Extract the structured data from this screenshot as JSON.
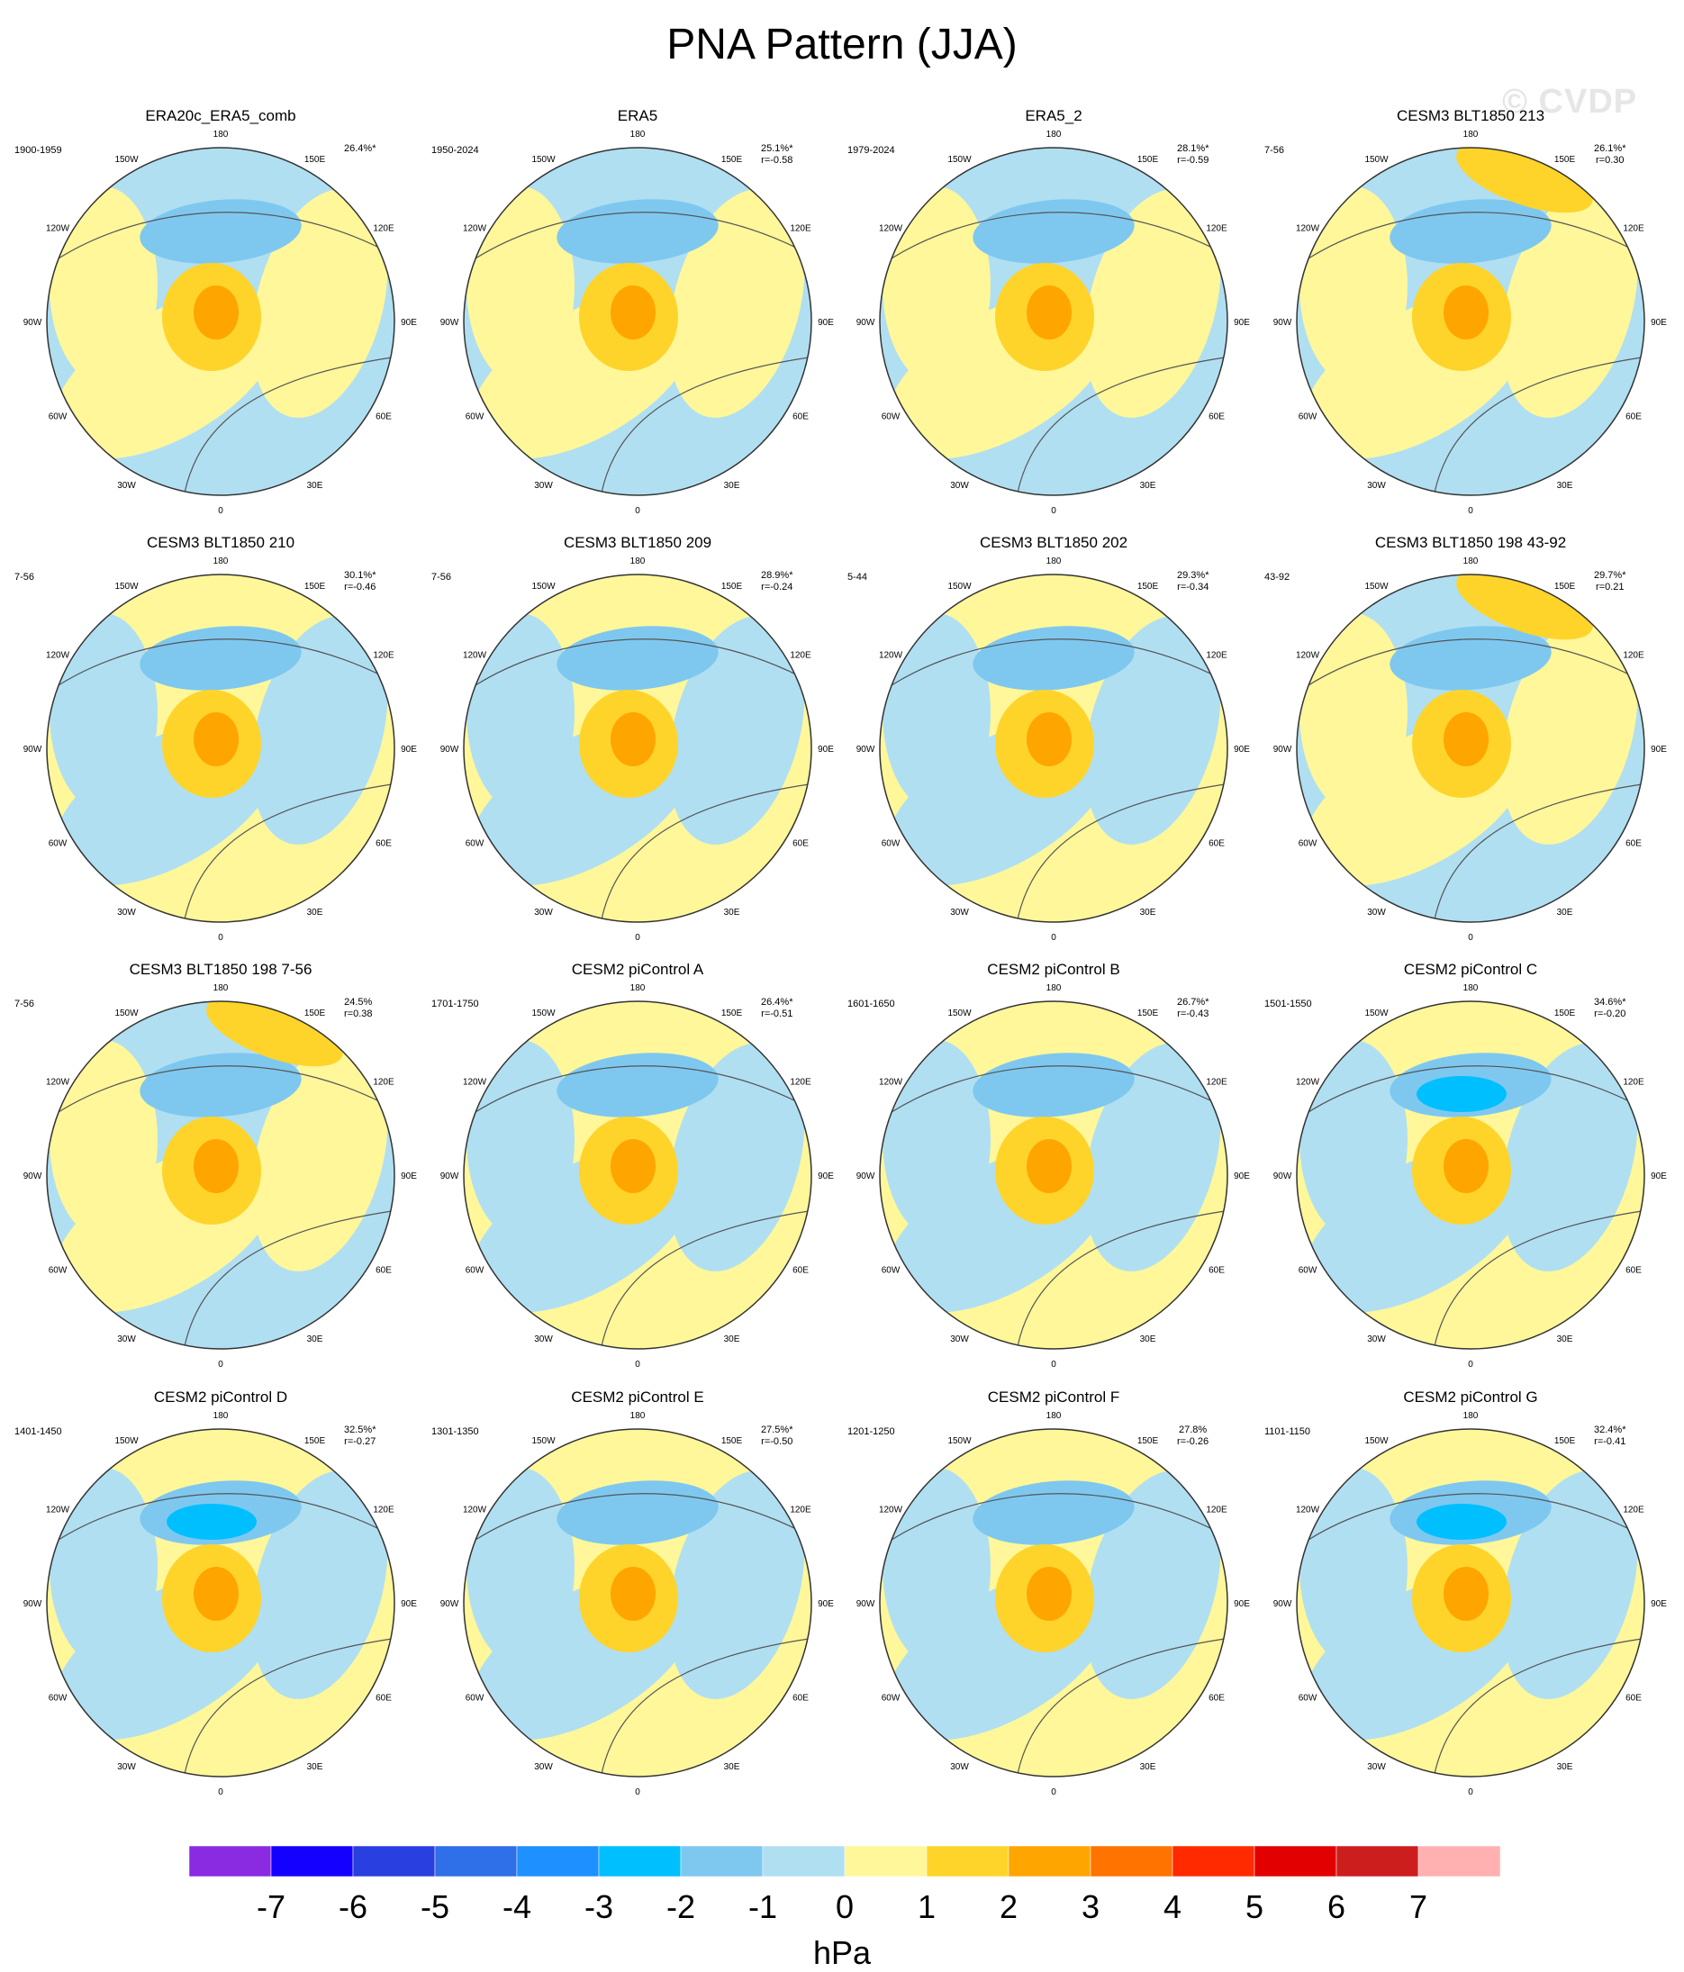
{
  "title": "PNA Pattern (JJA)",
  "watermark": "© CVDP",
  "chart_data": {
    "type": "heatmap",
    "projection": "north polar stereographic",
    "units": "hPa",
    "colorbar": {
      "labels": [
        "-7",
        "-6",
        "-5",
        "-4",
        "-3",
        "-2",
        "-1",
        "0",
        "1",
        "2",
        "3",
        "4",
        "5",
        "6",
        "7"
      ],
      "colors": [
        "#8a2be2",
        "#1400ff",
        "#2a3fe0",
        "#2f6fe8",
        "#1e90ff",
        "#00bfff",
        "#7ec8f0",
        "#b0dff2",
        "#fff79a",
        "#ffd42a",
        "#ffa500",
        "#ff7300",
        "#ff2a00",
        "#e30000",
        "#cd1e1e",
        "#ffb1b1"
      ]
    },
    "longitude_labels": [
      "180",
      "150E",
      "120E",
      "90E",
      "60E",
      "30E",
      "0",
      "30W",
      "60W",
      "90W",
      "120W",
      "150W"
    ],
    "panels": [
      {
        "title": "ERA20c_ERA5_comb",
        "years": "1900-1959",
        "pct": "26.4%*",
        "r": ""
      },
      {
        "title": "ERA5",
        "years": "1950-2024",
        "pct": "25.1%*",
        "r": "r=-0.58"
      },
      {
        "title": "ERA5_2",
        "years": "1979-2024",
        "pct": "28.1%*",
        "r": "r=-0.59"
      },
      {
        "title": "CESM3 BLT1850 213",
        "years": "7-56",
        "pct": "26.1%*",
        "r": "r=0.30"
      },
      {
        "title": "CESM3 BLT1850 210",
        "years": "7-56",
        "pct": "30.1%*",
        "r": "r=-0.46"
      },
      {
        "title": "CESM3 BLT1850 209",
        "years": "7-56",
        "pct": "28.9%*",
        "r": "r=-0.24"
      },
      {
        "title": "CESM3 BLT1850 202",
        "years": "5-44",
        "pct": "29.3%*",
        "r": "r=-0.34"
      },
      {
        "title": "CESM3 BLT1850 198 43-92",
        "years": "43-92",
        "pct": "29.7%*",
        "r": "r=0.21"
      },
      {
        "title": "CESM3 BLT1850 198 7-56",
        "years": "7-56",
        "pct": "24.5%",
        "r": "r=0.38"
      },
      {
        "title": "CESM2 piControl A",
        "years": "1701-1750",
        "pct": "26.4%*",
        "r": "r=-0.51"
      },
      {
        "title": "CESM2 piControl B",
        "years": "1601-1650",
        "pct": "26.7%*",
        "r": "r=-0.43"
      },
      {
        "title": "CESM2 piControl C",
        "years": "1501-1550",
        "pct": "34.6%*",
        "r": "r=-0.20"
      },
      {
        "title": "CESM2 piControl D",
        "years": "1401-1450",
        "pct": "32.5%*",
        "r": "r=-0.27"
      },
      {
        "title": "CESM2 piControl E",
        "years": "1301-1350",
        "pct": "27.5%*",
        "r": "r=-0.50"
      },
      {
        "title": "CESM2 piControl F",
        "years": "1201-1250",
        "pct": "27.8%",
        "r": "r=-0.26"
      },
      {
        "title": "CESM2 piControl G",
        "years": "1101-1150",
        "pct": "32.4%*",
        "r": "r=-0.41"
      }
    ]
  }
}
